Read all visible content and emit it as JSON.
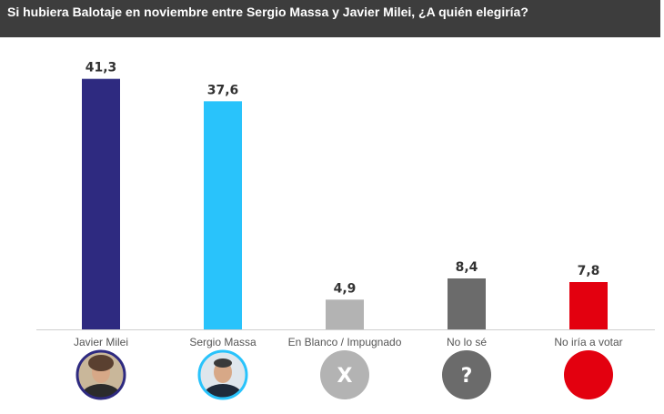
{
  "chart_data": {
    "type": "bar",
    "title": "Si hubiera Balotaje en noviembre entre Sergio Massa y Javier Milei, ¿A quién elegiría?",
    "categories": [
      "Javier Milei",
      "Sergio Massa",
      "En Blanco / Impugnado",
      "No lo sé",
      "No iría a votar"
    ],
    "values": [
      41.3,
      37.6,
      4.9,
      8.4,
      7.8
    ],
    "value_labels": [
      "41,3",
      "37,6",
      "4,9",
      "8,4",
      "7,8"
    ],
    "colors": [
      "#2e2a80",
      "#29c3fb",
      "#b3b3b3",
      "#6b6b6b",
      "#e3000f"
    ],
    "ylim": [
      0,
      45
    ],
    "grid": false,
    "legend": "none"
  },
  "icons": [
    {
      "name": "javier-milei-portrait-icon",
      "kind": "portrait",
      "bg": "#7a6a58",
      "glyph": ""
    },
    {
      "name": "sergio-massa-portrait-icon",
      "kind": "portrait",
      "bg": "#4a5a6a",
      "glyph": ""
    },
    {
      "name": "x-icon",
      "kind": "glyph",
      "bg": "#b3b3b3",
      "glyph": "X"
    },
    {
      "name": "question-mark-icon",
      "kind": "glyph",
      "bg": "#6b6b6b",
      "glyph": "?"
    },
    {
      "name": "red-circle-icon",
      "kind": "glyph",
      "bg": "#e3000f",
      "glyph": ""
    }
  ]
}
